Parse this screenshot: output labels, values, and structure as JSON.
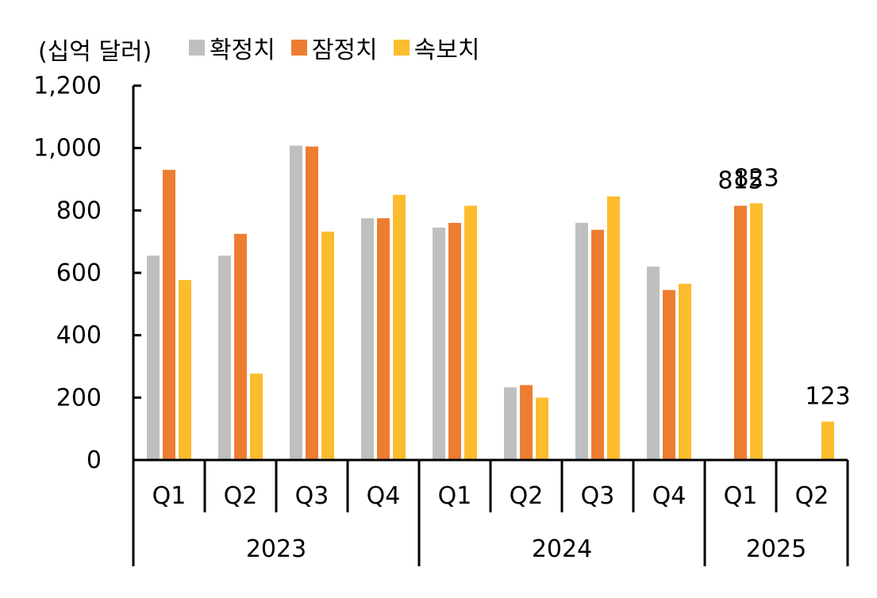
{
  "chart_data": {
    "type": "bar",
    "unit_label": "(십억 달러)",
    "categories": [
      "Q1",
      "Q2",
      "Q3",
      "Q4",
      "Q1",
      "Q2",
      "Q3",
      "Q4",
      "Q1",
      "Q2"
    ],
    "groups": [
      {
        "label": "2023",
        "span": 4
      },
      {
        "label": "2024",
        "span": 4
      },
      {
        "label": "2025",
        "span": 2
      }
    ],
    "series": [
      {
        "name": "확정치",
        "color": "#bfbfbf",
        "values": [
          655,
          655,
          1008,
          775,
          745,
          233,
          760,
          620,
          null,
          null
        ]
      },
      {
        "name": "잠정치",
        "color": "#ed7d31",
        "values": [
          930,
          725,
          1005,
          775,
          760,
          240,
          738,
          545,
          815,
          null
        ]
      },
      {
        "name": "속보치",
        "color": "#fbbc2e",
        "values": [
          577,
          277,
          732,
          850,
          815,
          200,
          845,
          565,
          823,
          123
        ]
      }
    ],
    "data_labels": [
      {
        "series": 1,
        "index": 8,
        "text": "815"
      },
      {
        "series": 2,
        "index": 8,
        "text": "823"
      },
      {
        "series": 2,
        "index": 9,
        "text": "123"
      }
    ],
    "ylim": [
      0,
      1200
    ],
    "yticks": [
      0,
      200,
      400,
      600,
      800,
      1000,
      1200
    ],
    "ytick_labels": [
      "0",
      "200",
      "400",
      "600",
      "800",
      "1,000",
      "1,200"
    ],
    "grid": false,
    "legend_position": "top"
  }
}
